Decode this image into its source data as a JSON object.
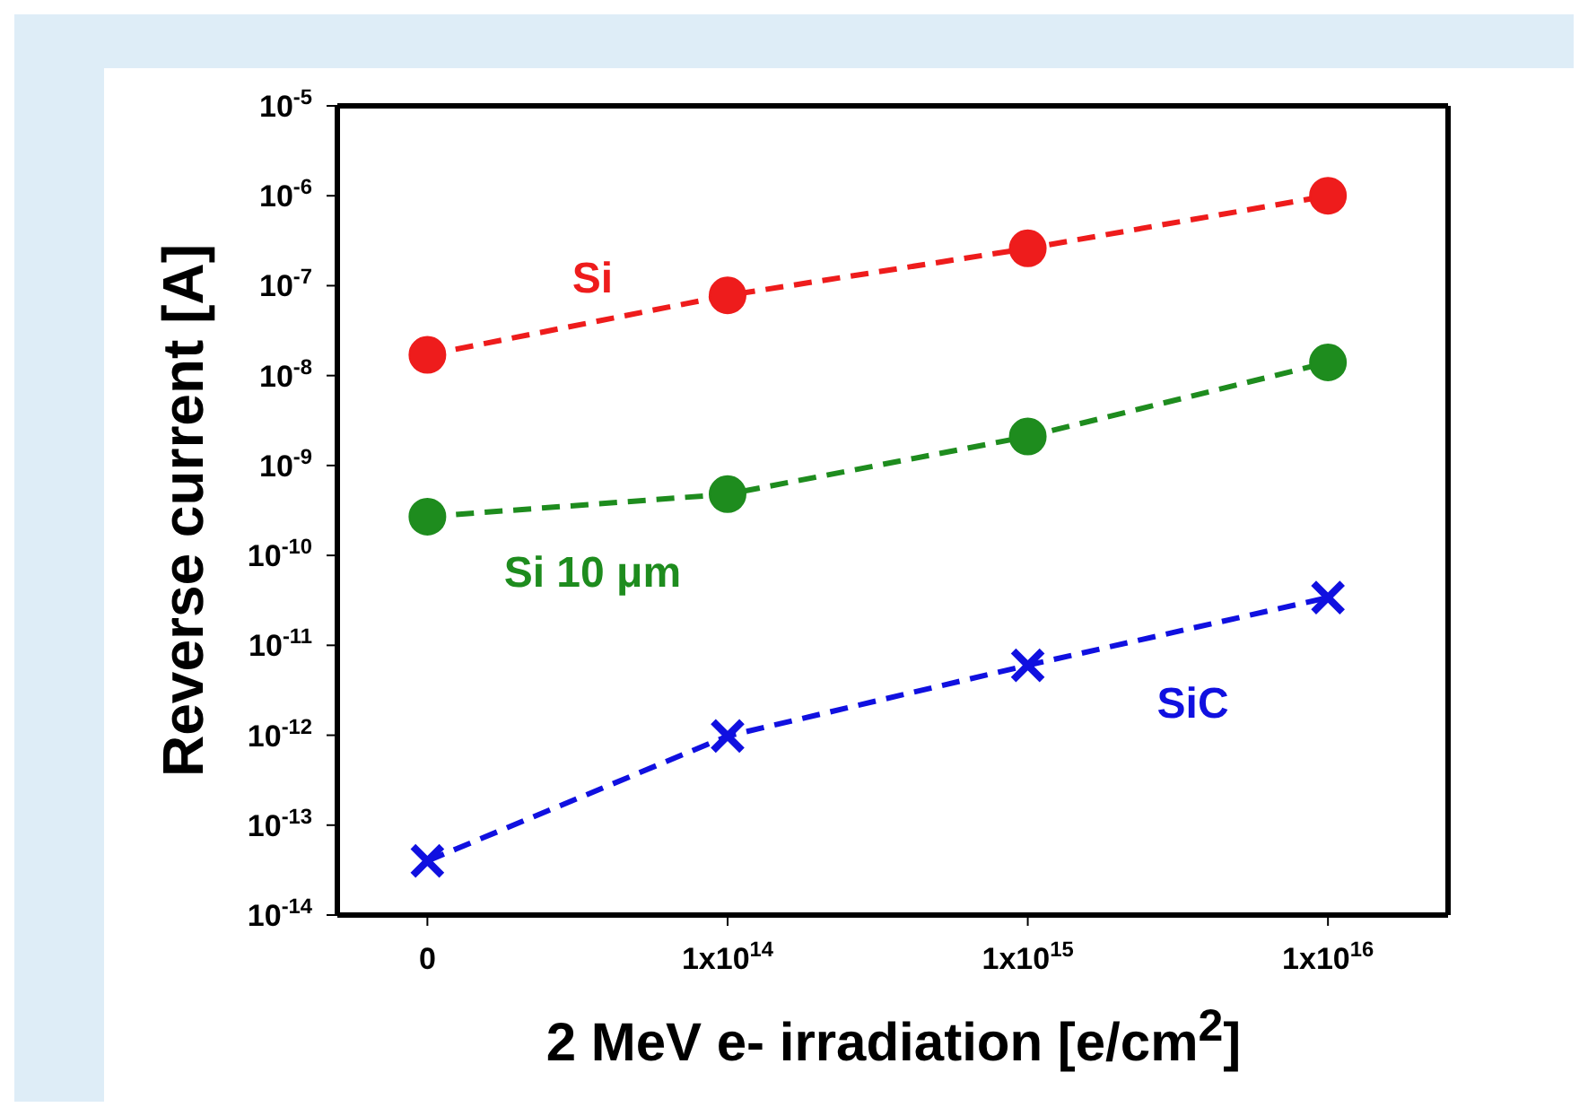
{
  "chart_data": {
    "type": "line",
    "xlabel": "2 MeV e- irradiation [e/cm$^{2}$]",
    "ylabel": "Reverse current [A]",
    "categories": [
      "0",
      "1x10$^{14}$",
      "1x10$^{15}$",
      "1x10$^{16}$"
    ],
    "series": [
      {
        "name": "Si",
        "color": "#ee1c1c",
        "marker": "circle",
        "values": [
          1.7e-08,
          7.8e-08,
          2.6e-07,
          1e-06
        ]
      },
      {
        "name": "Si 10 μm",
        "color": "#1e8c1e",
        "marker": "circle",
        "values": [
          2.7e-10,
          4.8e-10,
          2.1e-09,
          1.4e-08
        ]
      },
      {
        "name": "SiC",
        "color": "#1010e0",
        "marker": "cross",
        "values": [
          4e-14,
          9.8e-13,
          6e-12,
          3.4e-11
        ]
      }
    ],
    "log": "y",
    "ylim": [
      1e-14,
      1e-05
    ],
    "yticks": [
      {
        "value": 1e-14,
        "label": "10$^{-14}$"
      },
      {
        "value": 1e-13,
        "label": "10$^{-13}$"
      },
      {
        "value": 1e-12,
        "label": "10$^{-12}$"
      },
      {
        "value": 1e-11,
        "label": "10$^{-11}$"
      },
      {
        "value": 1e-10,
        "label": "10$^{-10}$"
      },
      {
        "value": 1e-09,
        "label": "10$^{-9}$"
      },
      {
        "value": 1e-08,
        "label": "10$^{-8}$"
      },
      {
        "value": 1e-07,
        "label": "10$^{-7}$"
      },
      {
        "value": 1e-06,
        "label": "10$^{-6}$"
      },
      {
        "value": 1e-05,
        "label": "10$^{-5}$"
      }
    ],
    "line_style": "dashed",
    "grid": false,
    "legend": false
  }
}
